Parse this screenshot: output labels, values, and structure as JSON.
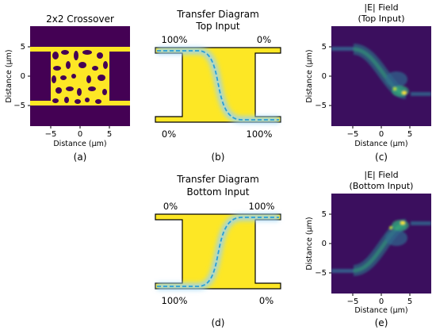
{
  "panels": {
    "a": {
      "title": "2x2 Crossover",
      "caption": "(a)",
      "xlabel": "Distance (μm)",
      "ylabel": "Distance (μm)",
      "xticks": [
        "−5",
        "0",
        "5"
      ],
      "yticks": [
        "5",
        "0",
        "−5"
      ]
    },
    "b": {
      "title_line1": "Transfer Diagram",
      "title_line2": "Top Input",
      "caption": "(b)",
      "top_left": "100%",
      "top_right": "0%",
      "bottom_left": "0%",
      "bottom_right": "100%"
    },
    "c": {
      "title_line1": "|E| Field",
      "title_line2": "(Top Input)",
      "caption": "(c)",
      "xlabel": "Distance (μm)",
      "ylabel": "Distance (μm)",
      "xticks": [
        "−5",
        "0",
        "5"
      ],
      "yticks": [
        "5",
        "0",
        "−5"
      ]
    },
    "d": {
      "title_line1": "Transfer Diagram",
      "title_line2": "Bottom Input",
      "caption": "(d)",
      "top_left": "0%",
      "top_right": "100%",
      "bottom_left": "100%",
      "bottom_right": "0%"
    },
    "e": {
      "title_line1": "|E| Field",
      "title_line2": "(Bottom Input)",
      "caption": "(e)",
      "xlabel": "Distance (μm)",
      "ylabel": "Distance (μm)",
      "xticks": [
        "−5",
        "0",
        "5"
      ],
      "yticks": [
        "5",
        "0",
        "−5"
      ]
    }
  },
  "colors": {
    "viridis_dark": "#440154",
    "viridis_yellow": "#fde725",
    "field_bg": "#3b0f5e",
    "waveguide_fill": "#fde725",
    "path_line": "#2a9fd6",
    "path_glow": "#9ad3f5"
  }
}
